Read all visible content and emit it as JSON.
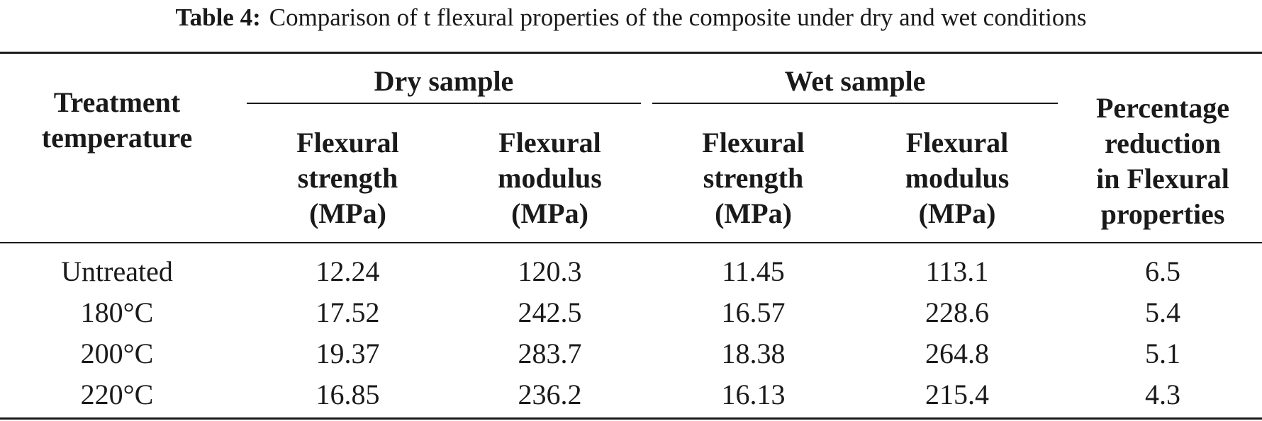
{
  "caption": {
    "label": "Table 4:",
    "text": "Comparison of t flexural properties of the composite under dry and wet conditions"
  },
  "header": {
    "treatment": [
      "Treatment",
      "temperature"
    ],
    "dry_group": "Dry sample",
    "wet_group": "Wet sample",
    "dry_strength": [
      "Flexural",
      "strength",
      "(MPa)"
    ],
    "dry_modulus": [
      "Flexural",
      "modulus",
      "(MPa)"
    ],
    "wet_strength": [
      "Flexural",
      "strength",
      "(MPa)"
    ],
    "wet_modulus": [
      "Flexural",
      "modulus",
      "(MPa)"
    ],
    "reduction": [
      "Percentage",
      "reduction",
      "in Flexural",
      "properties"
    ]
  },
  "rows": [
    [
      "Untreated",
      "12.24",
      "120.3",
      "11.45",
      "113.1",
      "6.5"
    ],
    [
      "180°C",
      "17.52",
      "242.5",
      "16.57",
      "228.6",
      "5.4"
    ],
    [
      "200°C",
      "19.37",
      "283.7",
      "18.38",
      "264.8",
      "5.1"
    ],
    [
      "220°C",
      "16.85",
      "236.2",
      "16.13",
      "215.4",
      "4.3"
    ]
  ]
}
